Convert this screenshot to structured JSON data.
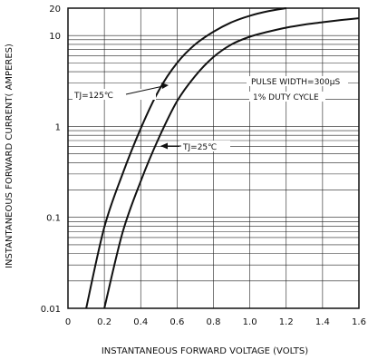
{
  "chart_data": {
    "type": "line",
    "xlabel": "INSTANTANEOUS FORWARD VOLTAGE (VOLTS)",
    "ylabel": "INSTANTANEOUS FORWARD CURRENT( AMPERES)",
    "xlim": [
      0,
      1.6
    ],
    "ylim": [
      0.01,
      20
    ],
    "yscale": "log",
    "grid": true,
    "x_ticks": [
      0,
      0.2,
      0.4,
      0.6,
      0.8,
      1.0,
      1.2,
      1.4,
      1.6
    ],
    "x_tick_labels": [
      "0",
      "0.2",
      "0.4",
      "0.6",
      "0.8",
      "1.0",
      "1.2",
      "1.4",
      "1.6"
    ],
    "y_ticks": [
      0.01,
      0.1,
      1,
      10,
      20
    ],
    "y_tick_labels": [
      "0.01",
      "0.1",
      "1",
      "10",
      "20"
    ],
    "series": [
      {
        "name": "TJ=125℃",
        "points": [
          [
            0.1,
            0.01
          ],
          [
            0.2,
            0.078
          ],
          [
            0.3,
            0.3
          ],
          [
            0.4,
            0.95
          ],
          [
            0.5,
            2.5
          ],
          [
            0.6,
            5.0
          ],
          [
            0.7,
            8.0
          ],
          [
            0.8,
            11.0
          ],
          [
            0.9,
            14.0
          ],
          [
            1.0,
            16.5
          ],
          [
            1.1,
            18.5
          ],
          [
            1.2,
            20.0
          ]
        ]
      },
      {
        "name": "TJ=25℃",
        "points": [
          [
            0.2,
            0.01
          ],
          [
            0.3,
            0.068
          ],
          [
            0.4,
            0.25
          ],
          [
            0.5,
            0.75
          ],
          [
            0.6,
            1.9
          ],
          [
            0.7,
            3.6
          ],
          [
            0.8,
            5.8
          ],
          [
            0.9,
            8.0
          ],
          [
            1.0,
            9.7
          ],
          [
            1.1,
            11.0
          ],
          [
            1.2,
            12.2
          ],
          [
            1.3,
            13.2
          ],
          [
            1.4,
            14.0
          ],
          [
            1.5,
            14.8
          ],
          [
            1.6,
            15.5
          ]
        ]
      }
    ],
    "annotations": {
      "label_125": "TJ=125℃",
      "label_25": "TJ=25℃",
      "pulse_width": "PULSE WIDTH=300μS",
      "duty_cycle": "1% DUTY CYCLE"
    }
  }
}
